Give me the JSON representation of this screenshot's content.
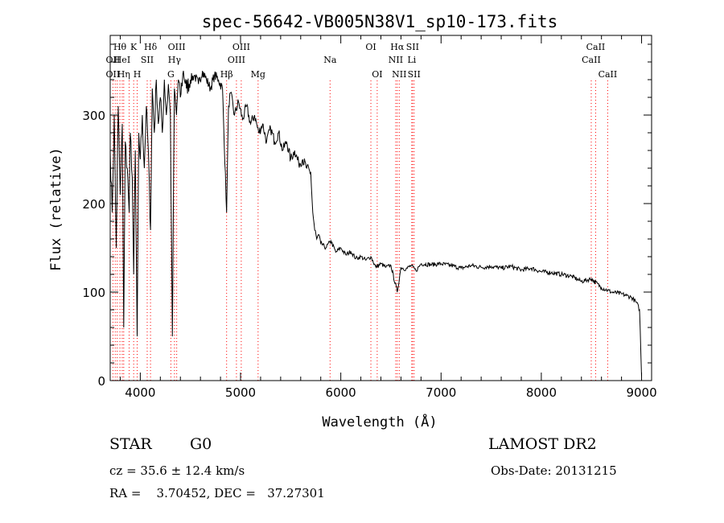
{
  "chart_data": {
    "type": "line",
    "title": "spec-56642-VB005N38V1_sp10-173.fits",
    "xlabel": "Wavelength (Å)",
    "ylabel": "Flux (relative)",
    "xlim": [
      3700,
      9100
    ],
    "ylim": [
      0,
      390
    ],
    "x_ticks": [
      4000,
      5000,
      6000,
      7000,
      8000,
      9000
    ],
    "y_ticks": [
      0,
      100,
      200,
      300
    ],
    "grid": false,
    "colors": {
      "spectrum": "#000000",
      "line_markers": "#ff0000",
      "axes": "#000000"
    },
    "series": [
      {
        "x": [
          3700,
          3720,
          3740,
          3760,
          3780,
          3800,
          3820,
          3835,
          3850,
          3870,
          3889,
          3900,
          3920,
          3934,
          3950,
          3969,
          3985,
          4000,
          4020,
          4040,
          4060,
          4080,
          4102,
          4120,
          4140,
          4160,
          4180,
          4200,
          4220,
          4240,
          4260,
          4280,
          4300,
          4320,
          4340,
          4360,
          4380,
          4400,
          4430,
          4460,
          4500,
          4540,
          4580,
          4620,
          4660,
          4700,
          4740,
          4780,
          4820,
          4861,
          4880,
          4900,
          4940,
          4980,
          5020,
          5060,
          5100,
          5140,
          5180,
          5220,
          5260,
          5300,
          5340,
          5380,
          5420,
          5460,
          5500,
          5540,
          5580,
          5620,
          5660,
          5700,
          5720,
          5740,
          5760,
          5780,
          5800,
          5850,
          5900,
          5950,
          6000,
          6050,
          6100,
          6150,
          6200,
          6250,
          6300,
          6350,
          6400,
          6450,
          6500,
          6563,
          6600,
          6650,
          6700,
          6750,
          6800,
          6900,
          7000,
          7100,
          7200,
          7300,
          7400,
          7500,
          7600,
          7700,
          7800,
          7900,
          8000,
          8100,
          8200,
          8300,
          8400,
          8500,
          8600,
          8700,
          8800,
          8850,
          8900,
          8950,
          8980,
          9000
        ],
        "y": [
          260,
          190,
          300,
          150,
          310,
          210,
          290,
          60,
          270,
          240,
          190,
          280,
          230,
          120,
          260,
          50,
          280,
          250,
          300,
          240,
          310,
          260,
          170,
          330,
          280,
          340,
          290,
          320,
          280,
          340,
          300,
          335,
          300,
          50,
          330,
          300,
          340,
          320,
          350,
          330,
          340,
          345,
          335,
          350,
          340,
          330,
          345,
          340,
          330,
          190,
          310,
          325,
          300,
          315,
          295,
          310,
          290,
          300,
          280,
          290,
          270,
          285,
          270,
          280,
          260,
          270,
          250,
          260,
          245,
          250,
          240,
          235,
          190,
          170,
          160,
          165,
          155,
          150,
          158,
          145,
          150,
          142,
          146,
          138,
          140,
          136,
          140,
          128,
          132,
          128,
          130,
          100,
          128,
          126,
          130,
          124,
          132,
          131,
          132,
          130,
          127,
          130,
          128,
          129,
          127,
          129,
          125,
          127,
          123,
          122,
          120,
          118,
          112,
          115,
          105,
          100,
          98,
          96,
          94,
          88,
          80,
          5
        ]
      }
    ],
    "line_labels": [
      {
        "text": "Hθ",
        "x": 3797,
        "row": 1
      },
      {
        "text": "K",
        "x": 3934,
        "row": 1
      },
      {
        "text": "Hδ",
        "x": 4102,
        "row": 1
      },
      {
        "text": "OII",
        "x": 3727,
        "row": 2
      },
      {
        "text": "HeI",
        "x": 3820,
        "row": 2
      },
      {
        "text": "SII",
        "x": 4069,
        "row": 2
      },
      {
        "text": "OII",
        "x": 3727,
        "row": 3
      },
      {
        "text": "Hη",
        "x": 3835,
        "row": 3
      },
      {
        "text": "H",
        "x": 3969,
        "row": 3
      },
      {
        "text": "OIII",
        "x": 4363,
        "row": 1
      },
      {
        "text": "Hγ",
        "x": 4341,
        "row": 2
      },
      {
        "text": "G",
        "x": 4305,
        "row": 3
      },
      {
        "text": "OIII",
        "x": 5007,
        "row": 1
      },
      {
        "text": "OIII",
        "x": 4959,
        "row": 2
      },
      {
        "text": "Hβ",
        "x": 4861,
        "row": 3
      },
      {
        "text": "Mg",
        "x": 5175,
        "row": 3
      },
      {
        "text": "Na",
        "x": 5893,
        "row": 2
      },
      {
        "text": "OI",
        "x": 6300,
        "row": 1
      },
      {
        "text": "OI",
        "x": 6363,
        "row": 3
      },
      {
        "text": "Hα",
        "x": 6563,
        "row": 1
      },
      {
        "text": "SII",
        "x": 6716,
        "row": 1
      },
      {
        "text": "NII",
        "x": 6548,
        "row": 2
      },
      {
        "text": "Li",
        "x": 6708,
        "row": 2
      },
      {
        "text": "NII",
        "x": 6583,
        "row": 3
      },
      {
        "text": "SII",
        "x": 6731,
        "row": 3
      },
      {
        "text": "CaII",
        "x": 8542,
        "row": 1
      },
      {
        "text": "CaII",
        "x": 8498,
        "row": 2
      },
      {
        "text": "CaII",
        "x": 8662,
        "row": 3
      }
    ],
    "marker_lines": [
      3727,
      3750,
      3770,
      3797,
      3820,
      3835,
      3889,
      3934,
      3969,
      4069,
      4102,
      4305,
      4341,
      4363,
      4861,
      4959,
      5007,
      5175,
      5893,
      6300,
      6363,
      6548,
      6563,
      6583,
      6708,
      6716,
      6731,
      8498,
      8542,
      8662
    ]
  },
  "info": {
    "object_class": "STAR",
    "subclass": "G0",
    "survey": "LAMOST DR2",
    "redshift": "cz = 35.6 ± 12.4 km/s",
    "obs_date": "Obs-Date: 20131215",
    "coords": "RA =    3.70452, DEC =   37.27301"
  }
}
